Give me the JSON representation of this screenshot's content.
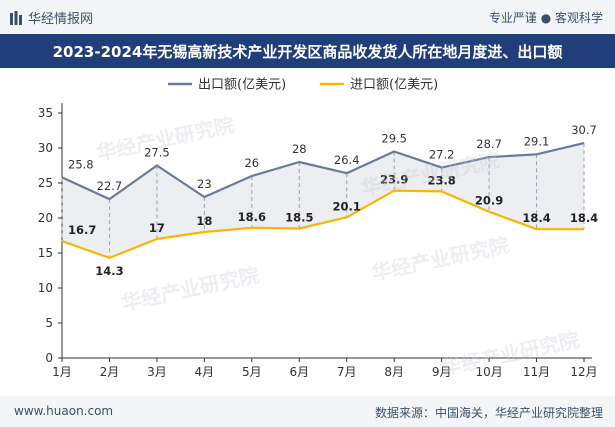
{
  "header": {
    "brand": "华经情报网",
    "slogan": "专业严谨 ● 客观科学"
  },
  "title": "2023-2024年无锡高新技术产业开发区商品收发货人所在地月度进、出口额",
  "footer": {
    "website": "www.huaon.com",
    "source": "数据来源：中国海关，华经产业研究院整理"
  },
  "watermark": "华经产业研究院",
  "colors": {
    "export": "#6b7a99",
    "import": "#f5b800",
    "band": "#e9ebf0"
  },
  "chart_data": {
    "type": "line",
    "categories": [
      "1月",
      "2月",
      "3月",
      "4月",
      "5月",
      "6月",
      "7月",
      "8月",
      "9月",
      "10月",
      "11月",
      "12月"
    ],
    "series": [
      {
        "name": "出口额(亿美元)",
        "values": [
          25.8,
          22.7,
          27.5,
          23,
          26,
          28,
          26.4,
          29.5,
          27.2,
          28.7,
          29.1,
          30.7
        ]
      },
      {
        "name": "进口额(亿美元)",
        "values": [
          16.7,
          14.3,
          17,
          18,
          18.6,
          18.5,
          20.1,
          23.9,
          23.8,
          20.9,
          18.4,
          18.4
        ]
      }
    ],
    "yticks": [
      0,
      5,
      10,
      15,
      20,
      25,
      30,
      35
    ],
    "ylim": [
      0,
      35
    ],
    "legend": "top-center"
  }
}
